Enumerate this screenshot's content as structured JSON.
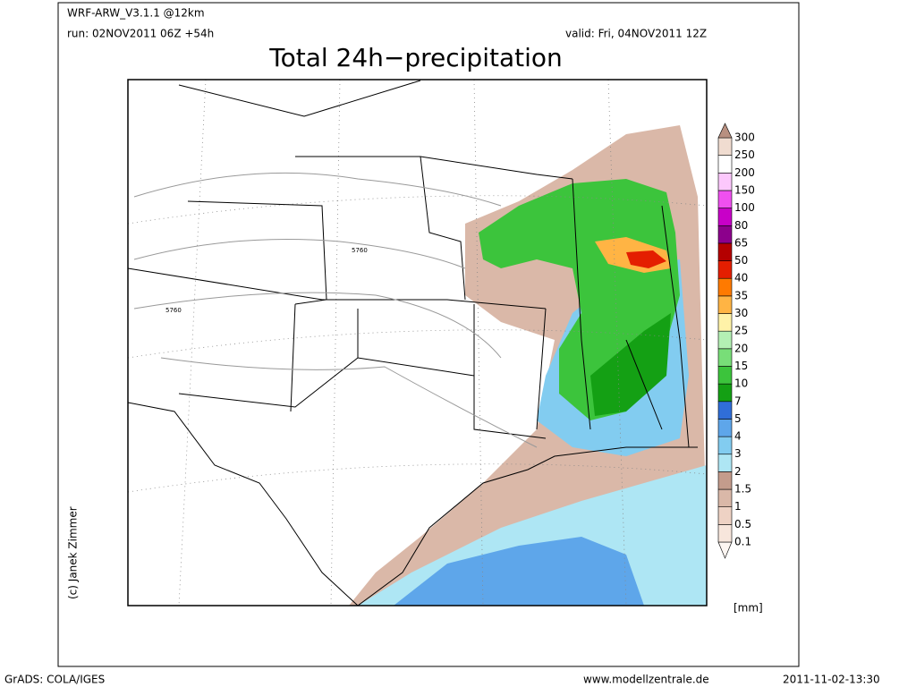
{
  "header": {
    "model": "WRF-ARW_V3.1.1 @12km",
    "run": "run: 02NOV2011 06Z +54h",
    "valid": "valid: Fri, 04NOV2011 12Z",
    "title": "Total 24h−precipitation"
  },
  "map": {
    "contour_labels": [
      "5760",
      "5760"
    ],
    "credit": "(c) Janek Zimmer"
  },
  "colorbar": {
    "labels": [
      "0.1",
      "0.5",
      "1",
      "1.5",
      "2",
      "3",
      "4",
      "5",
      "7",
      "10",
      "15",
      "20",
      "25",
      "30",
      "35",
      "40",
      "50",
      "65",
      "80",
      "100",
      "150",
      "200",
      "250",
      "300"
    ],
    "colors": [
      "#fdf6f2",
      "#f7e6dc",
      "#eed2c4",
      "#dab8a8",
      "#c49c8c",
      "#aee6f4",
      "#82ccf0",
      "#5ea6ea",
      "#306ed8",
      "#14a014",
      "#3cc43c",
      "#78de78",
      "#b4f0b4",
      "#fff2a8",
      "#ffb444",
      "#ff7a00",
      "#e41e00",
      "#b40000",
      "#8c008c",
      "#c800c8",
      "#f050f0",
      "#fcc8fc",
      "#ffffff",
      "#f0dcd0",
      "#b89080"
    ],
    "unit": "[mm]"
  },
  "footer": {
    "software": "GrADS: COLA/IGES",
    "site": "www.modellzentrale.de",
    "timestamp": "2011-11-02-13:30"
  }
}
